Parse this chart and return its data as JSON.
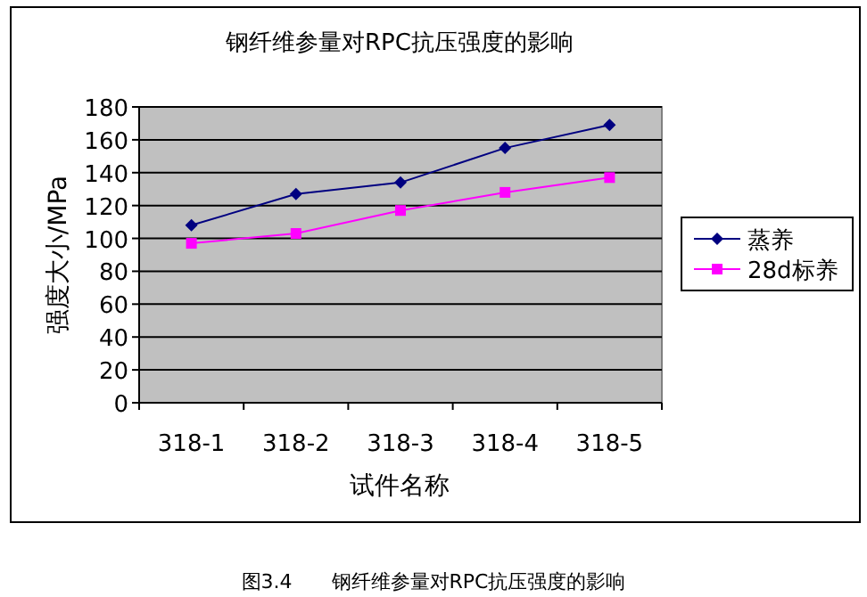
{
  "chart_data": {
    "type": "line",
    "title": "钢纤维参量对RPC抗压强度的影响",
    "xlabel": "试件名称",
    "ylabel": "强度大小/MPa",
    "categories": [
      "318-1",
      "318-2",
      "318-3",
      "318-4",
      "318-5"
    ],
    "series": [
      {
        "name": "蒸养",
        "color": "#000080",
        "marker": "diamond",
        "values": [
          108,
          127,
          134,
          155,
          169
        ]
      },
      {
        "name": "28d标养",
        "color": "#ff00ff",
        "marker": "square",
        "values": [
          97,
          103,
          117,
          128,
          137
        ]
      }
    ],
    "ylim": [
      0,
      180
    ],
    "yticks": [
      0,
      20,
      40,
      60,
      80,
      100,
      120,
      140,
      160,
      180
    ],
    "grid": "y",
    "legend": "right",
    "annotations": [
      "图3.4　　钢纤维参量对RPC抗压强度的影响"
    ]
  }
}
